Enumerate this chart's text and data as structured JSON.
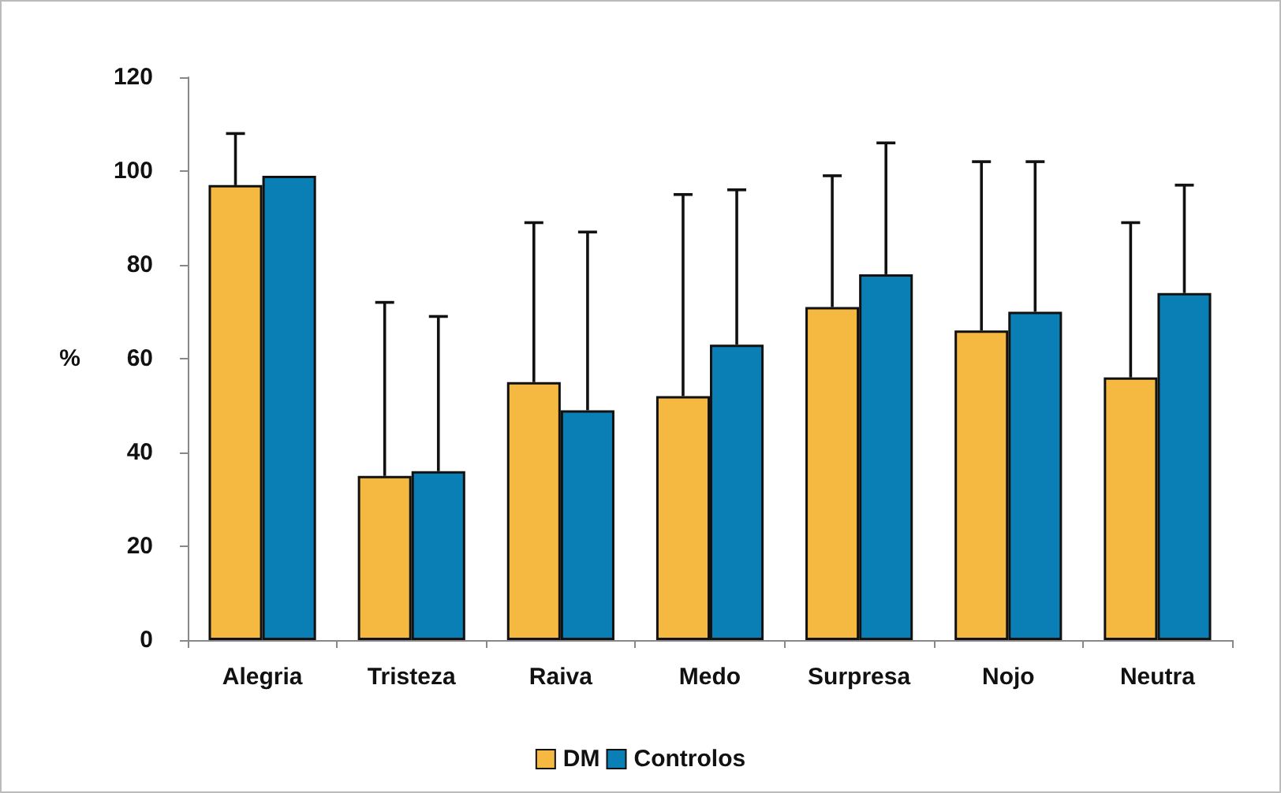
{
  "chart_data": {
    "type": "bar",
    "ylabel": "%",
    "categories": [
      "Alegria",
      "Tristeza",
      "Raiva",
      "Medo",
      "Surpresa",
      "Nojo",
      "Neutra"
    ],
    "series": [
      {
        "name": "DM",
        "color": "#f5b942",
        "values": [
          97,
          35,
          55,
          52,
          71,
          66,
          56
        ],
        "errors": [
          [
            97,
            108
          ],
          [
            35,
            72
          ],
          [
            55,
            89
          ],
          [
            52,
            95
          ],
          [
            71,
            99
          ],
          [
            66,
            102
          ],
          [
            56,
            89
          ]
        ]
      },
      {
        "name": "Controlos",
        "color": "#0a7fb5",
        "values": [
          99,
          36,
          49,
          63,
          78,
          70,
          74
        ],
        "errors": [
          null,
          [
            36,
            69
          ],
          [
            49,
            87
          ],
          [
            63,
            96
          ],
          [
            78,
            106
          ],
          [
            70,
            102
          ],
          [
            74,
            97
          ]
        ]
      }
    ],
    "ylim": [
      0,
      120
    ],
    "yticks": [
      0,
      20,
      40,
      60,
      80,
      100,
      120
    ],
    "grid": false,
    "legend": "bottom"
  }
}
